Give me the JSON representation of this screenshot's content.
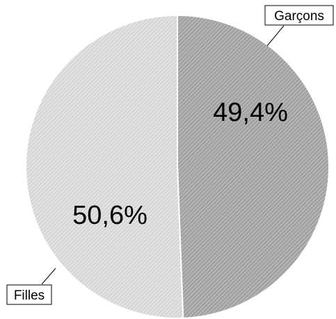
{
  "chart_data": {
    "type": "pie",
    "categories": [
      "Garçons",
      "Filles"
    ],
    "values": [
      49.4,
      50.6
    ],
    "value_labels": [
      "49,4%",
      "50,6%"
    ],
    "title": "",
    "legend": "none",
    "colors": [
      "#b3b3b3",
      "#e2e2e2"
    ],
    "hatch_colors": [
      "#8f8f8f",
      "#c9c9c9"
    ]
  }
}
